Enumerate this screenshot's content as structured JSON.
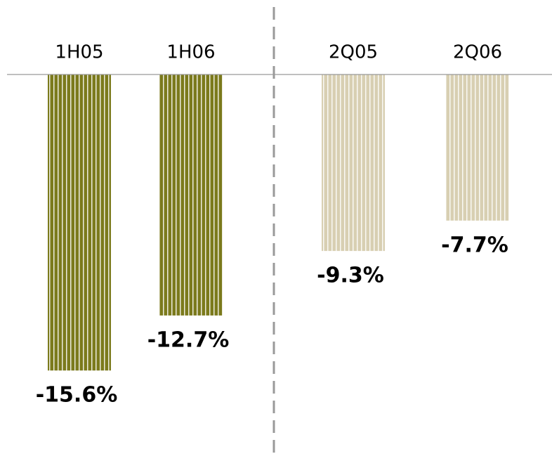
{
  "chart_data": {
    "type": "bar",
    "categories": [
      "1H05",
      "1H06",
      "2Q05",
      "2Q06"
    ],
    "values": [
      -15.6,
      -12.7,
      -9.3,
      -7.7
    ],
    "value_labels": [
      "-15.6%",
      "-12.7%",
      "-9.3%",
      "-7.7%"
    ],
    "colors": [
      "#7b7a1c",
      "#7b7a1c",
      "#d8cfb2",
      "#d8cfb2"
    ],
    "ylim": [
      -20,
      0
    ]
  }
}
